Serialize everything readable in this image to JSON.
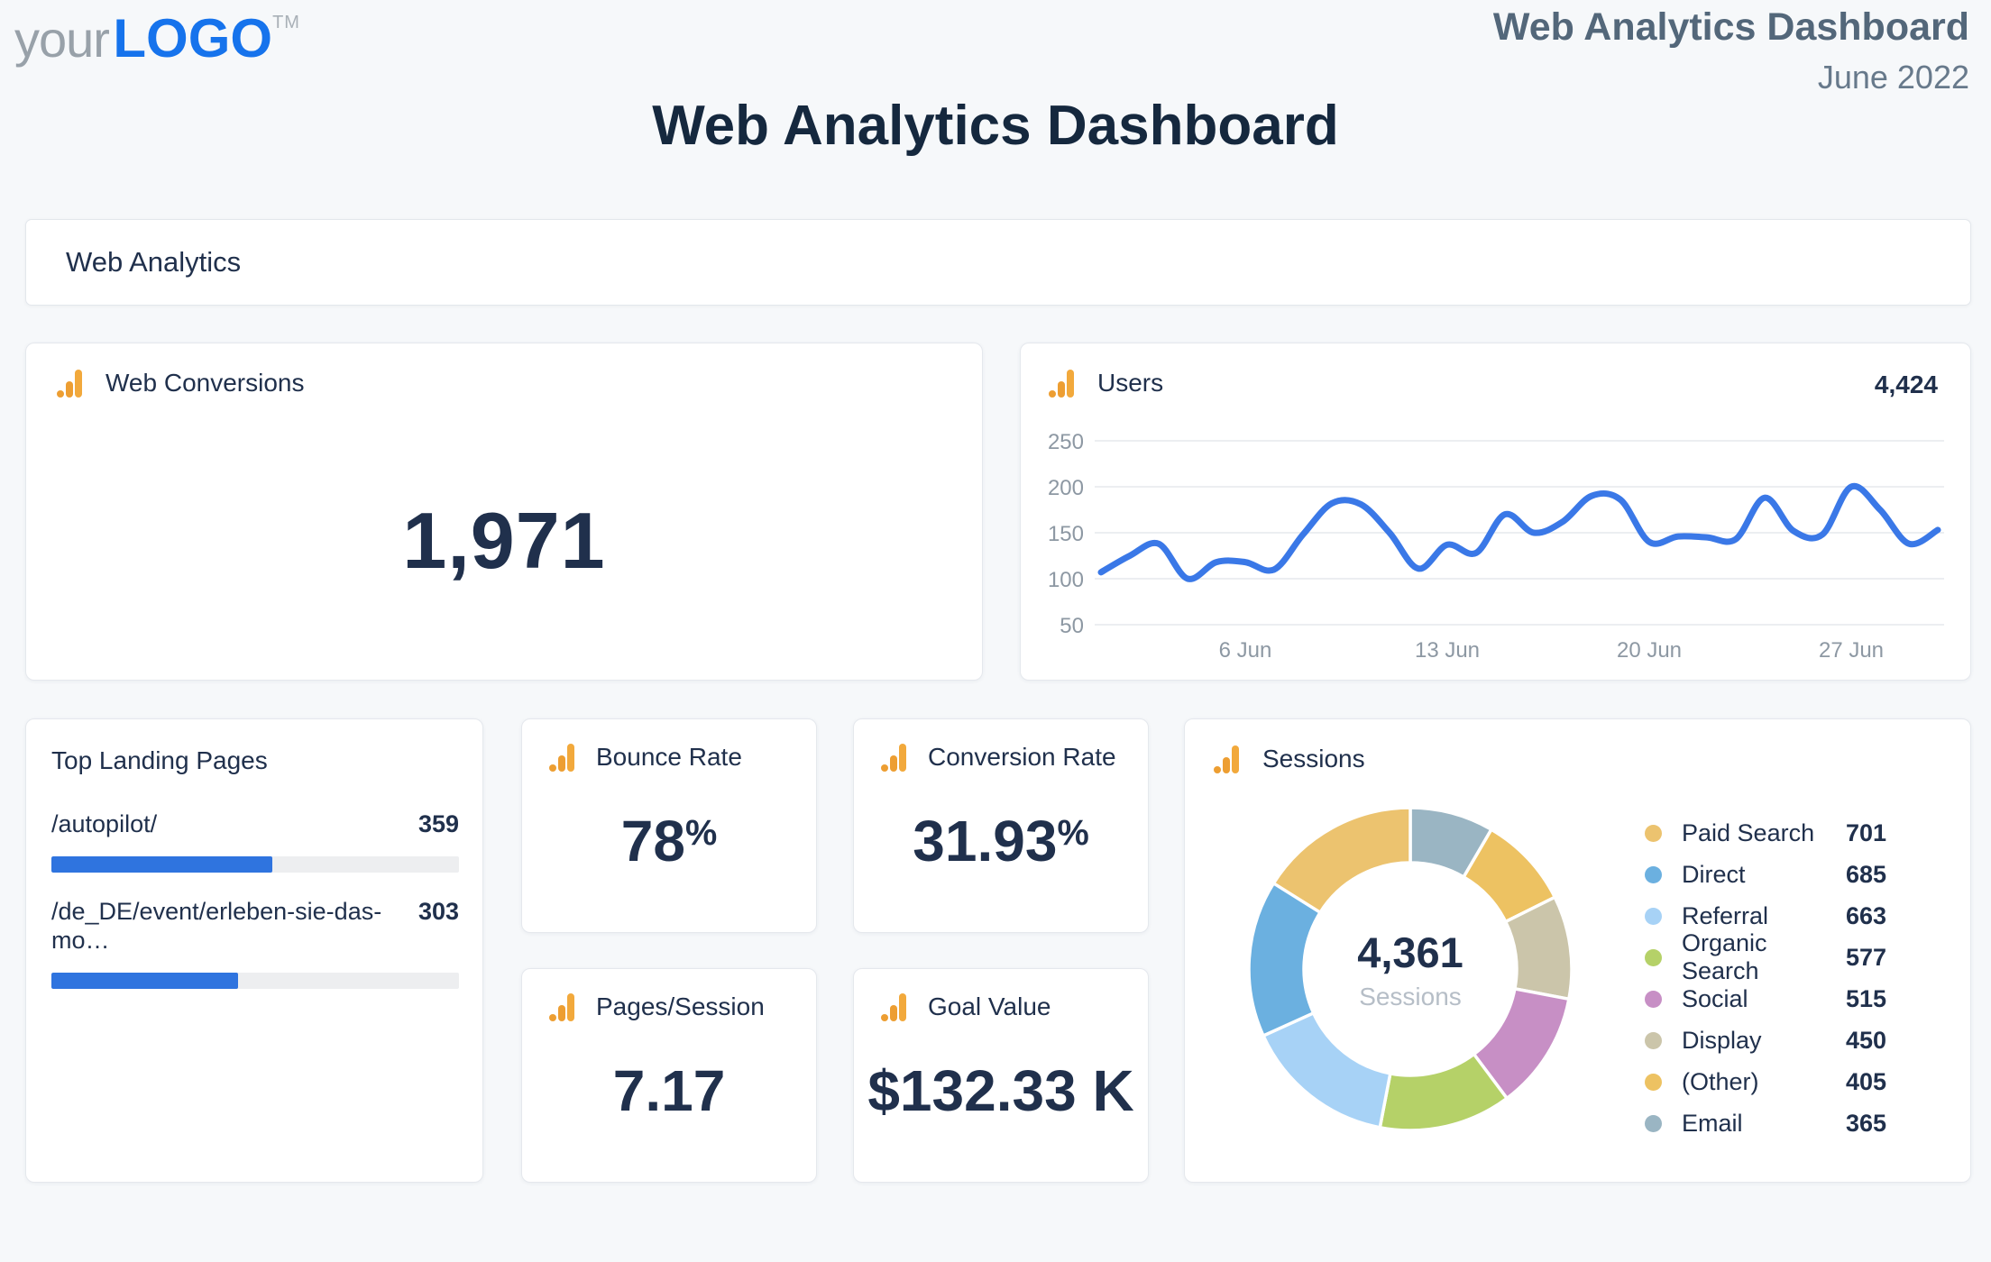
{
  "page": {
    "background": "#F6F8FA",
    "card_background": "#FFFFFF",
    "navy_text": "#20304C",
    "accent_blue": "#2F74DF",
    "muted_gray": "#8D98A3"
  },
  "header": {
    "logo_your": "your",
    "logo_word": "LOGO",
    "logo_tm": "TM",
    "report_title": "Web Analytics Dashboard",
    "report_date": "June 2022"
  },
  "page_title": "Web Analytics Dashboard",
  "section": {
    "title": "Web Analytics"
  },
  "cards": {
    "web_conversions": {
      "label": "Web Conversions",
      "value": "1,971"
    },
    "users": {
      "label": "Users",
      "total": "4,424"
    },
    "top_landing_pages": {
      "title": "Top Landing Pages"
    },
    "bounce_rate": {
      "label": "Bounce Rate",
      "value": "78",
      "suffix": "%"
    },
    "conversion_rate": {
      "label": "Conversion Rate",
      "value": "31.93",
      "suffix": "%"
    },
    "pages_per_session": {
      "label": "Pages/Session",
      "value": "7.17"
    },
    "goal_value": {
      "label": "Goal Value",
      "value": "$132.33 K"
    },
    "sessions": {
      "label": "Sessions",
      "center_value": "4,361",
      "center_label": "Sessions"
    }
  },
  "chart_data": [
    {
      "id": "users-daily",
      "type": "line",
      "title": "Users",
      "total_label": "4,424",
      "x_unit": "day of June 2022",
      "x": [
        1,
        2,
        3,
        4,
        5,
        6,
        7,
        8,
        9,
        10,
        11,
        12,
        13,
        14,
        15,
        16,
        17,
        18,
        19,
        20,
        21,
        22,
        23,
        24,
        25,
        26,
        27,
        28,
        29,
        30
      ],
      "values": [
        107,
        125,
        138,
        100,
        118,
        118,
        110,
        148,
        182,
        181,
        150,
        111,
        137,
        128,
        170,
        150,
        162,
        190,
        186,
        140,
        146,
        145,
        143,
        188,
        152,
        148,
        200,
        175,
        138,
        153
      ],
      "x_ticks": [
        {
          "day": 6,
          "label": "6 Jun"
        },
        {
          "day": 13,
          "label": "13 Jun"
        },
        {
          "day": 20,
          "label": "20 Jun"
        },
        {
          "day": 27,
          "label": "27 Jun"
        }
      ],
      "y_ticks": [
        250,
        200,
        150,
        100,
        50
      ],
      "ylim": [
        30,
        265
      ],
      "grid": true,
      "legend_position": "none",
      "line_color": "#3A78E7",
      "grid_color": "#ECEEF1",
      "axis_label_color": "#8D98A3"
    },
    {
      "id": "sessions-by-channel",
      "type": "donut",
      "title": "Sessions",
      "center_value": "4,361",
      "center_label": "Sessions",
      "total": 4361,
      "legend_position": "right",
      "slices": [
        {
          "label": "Paid Search",
          "value": 701,
          "color": "#ECC36F"
        },
        {
          "label": "Direct",
          "value": 685,
          "color": "#6BB0E0"
        },
        {
          "label": "Referral",
          "value": 663,
          "color": "#A7D2F6"
        },
        {
          "label": "Organic Search",
          "value": 577,
          "color": "#B5D168"
        },
        {
          "label": "Social",
          "value": 515,
          "color": "#C78FC5"
        },
        {
          "label": "Display",
          "value": 450,
          "color": "#CBC5AA"
        },
        {
          "label": "(Other)",
          "value": 405,
          "color": "#EDC262"
        },
        {
          "label": "Email",
          "value": 365,
          "color": "#9AB5C3"
        }
      ]
    },
    {
      "id": "top-landing-pages",
      "type": "bar",
      "title": "Top Landing Pages",
      "categories": [
        "/autopilot/",
        "/de_DE/event/erleben-sie-das-mo…"
      ],
      "values": [
        359,
        303
      ],
      "scale_max": 663,
      "bar_color": "#2F74DF",
      "track_color": "#EDEEF0"
    }
  ]
}
